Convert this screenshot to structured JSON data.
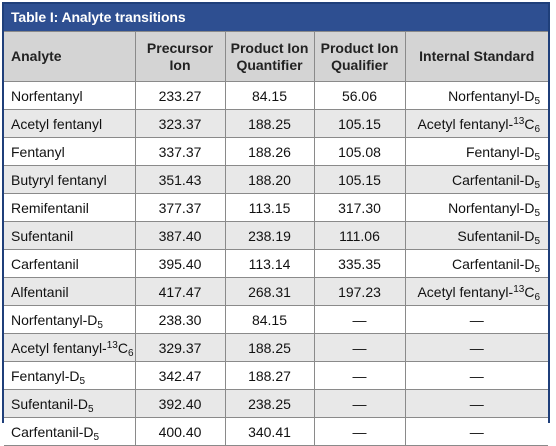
{
  "table": {
    "title": "Table I: Analyte transitions",
    "headers": {
      "analyte": "Analyte",
      "precursor_line1": "Precursor",
      "precursor_line2": "Ion",
      "quant_line1": "Product Ion",
      "quant_line2": "Quantifier",
      "qual_line1": "Product Ion",
      "qual_line2": "Qualifier",
      "istd": "Internal Standard"
    },
    "rows": [
      {
        "a": {
          "pre": "Norfentanyl"
        },
        "prec": "233.27",
        "quant": "84.15",
        "qual": "56.06",
        "is": {
          "pre": "Norfentanyl-D",
          "sub": "5"
        }
      },
      {
        "a": {
          "pre": "Acetyl fentanyl"
        },
        "prec": "323.37",
        "quant": "188.25",
        "qual": "105.15",
        "is": {
          "pre": "Acetyl fentanyl-",
          "sup": "13",
          "mid": "C",
          "sub": "6"
        }
      },
      {
        "a": {
          "pre": "Fentanyl"
        },
        "prec": "337.37",
        "quant": "188.26",
        "qual": "105.08",
        "is": {
          "pre": "Fentanyl-D",
          "sub": "5"
        }
      },
      {
        "a": {
          "pre": "Butyryl fentanyl"
        },
        "prec": "351.43",
        "quant": "188.20",
        "qual": "105.15",
        "is": {
          "pre": "Carfentanil-D",
          "sub": "5"
        }
      },
      {
        "a": {
          "pre": "Remifentanil"
        },
        "prec": "377.37",
        "quant": "113.15",
        "qual": "317.30",
        "is": {
          "pre": "Norfentanyl-D",
          "sub": "5"
        }
      },
      {
        "a": {
          "pre": "Sufentanil"
        },
        "prec": "387.40",
        "quant": "238.19",
        "qual": "111.06",
        "is": {
          "pre": "Sufentanil-D",
          "sub": "5"
        }
      },
      {
        "a": {
          "pre": "Carfentanil"
        },
        "prec": "395.40",
        "quant": "113.14",
        "qual": "335.35",
        "is": {
          "pre": "Carfentanil-D",
          "sub": "5"
        }
      },
      {
        "a": {
          "pre": "Alfentanil"
        },
        "prec": "417.47",
        "quant": "268.31",
        "qual": "197.23",
        "is": {
          "pre": "Acetyl fentanyl-",
          "sup": "13",
          "mid": "C",
          "sub": "6"
        }
      },
      {
        "a": {
          "pre": "Norfentanyl-D",
          "sub": "5"
        },
        "prec": "238.30",
        "quant": "84.15",
        "qual": "—",
        "is": {
          "pre": "—"
        }
      },
      {
        "a": {
          "pre": "Acetyl fentanyl-",
          "sup": "13",
          "mid": "C",
          "sub": "6"
        },
        "prec": "329.37",
        "quant": "188.25",
        "qual": "—",
        "is": {
          "pre": "—"
        }
      },
      {
        "a": {
          "pre": "Fentanyl-D",
          "sub": "5"
        },
        "prec": "342.47",
        "quant": "188.27",
        "qual": "—",
        "is": {
          "pre": "—"
        }
      },
      {
        "a": {
          "pre": "Sufentanil-D",
          "sub": "5"
        },
        "prec": "392.40",
        "quant": "238.25",
        "qual": "—",
        "is": {
          "pre": "—"
        }
      },
      {
        "a": {
          "pre": "Carfentanil-D",
          "sub": "5"
        },
        "prec": "400.40",
        "quant": "340.41",
        "qual": "—",
        "is": {
          "pre": "—"
        }
      }
    ]
  },
  "colors": {
    "title_bg": "#2e4f91",
    "border": "#1f3f7a",
    "header_bg": "#d4d4d4",
    "row_alt_bg": "#e8e8e8"
  }
}
